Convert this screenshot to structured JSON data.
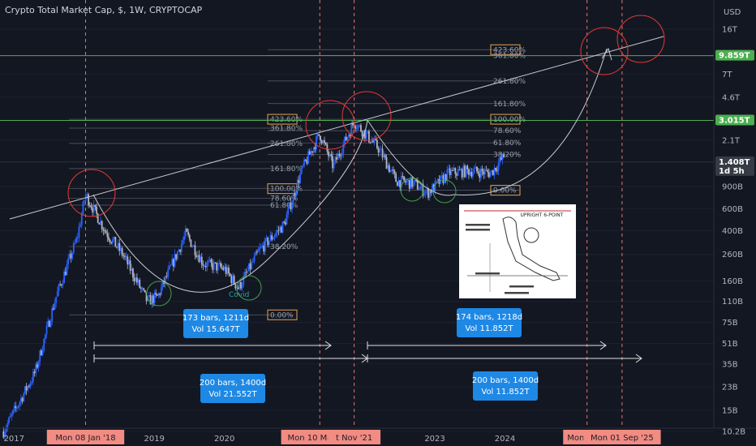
{
  "title": "Crypto Total Market Cap, $, 1W, CRYPTOCAP",
  "currency": "USD",
  "chart_data": {
    "type": "candlestick",
    "title": "Crypto Total Market Cap, $, 1W, CRYPTOCAP",
    "y_scale": "log",
    "ylim": [
      9.5,
      22
    ],
    "y_ticks": [
      {
        "v": 16,
        "label": "16T"
      },
      {
        "v": 7,
        "label": "7T"
      },
      {
        "v": 4.6,
        "label": "4.6T"
      },
      {
        "v": 2.1,
        "label": "2.1T"
      },
      {
        "v": 0.9,
        "label": "900B"
      },
      {
        "v": 0.6,
        "label": "600B"
      },
      {
        "v": 0.4,
        "label": "400B"
      },
      {
        "v": 0.26,
        "label": "260B"
      },
      {
        "v": 0.16,
        "label": "160B"
      },
      {
        "v": 0.11,
        "label": "110B"
      },
      {
        "v": 0.075,
        "label": "75B"
      },
      {
        "v": 0.051,
        "label": "51B"
      },
      {
        "v": 0.035,
        "label": "35B"
      },
      {
        "v": 0.023,
        "label": "23B"
      },
      {
        "v": 0.015,
        "label": "15B"
      },
      {
        "v": 0.0102,
        "label": "10.2B"
      }
    ],
    "price_tags": [
      {
        "v": 9.859,
        "label": "9.859T",
        "color": "#4caf50"
      },
      {
        "v": 3.015,
        "label": "3.015T",
        "color": "#4caf50"
      },
      {
        "v": 1.408,
        "label": "1.408T",
        "sub": "1d 5h",
        "color": "#363a45"
      }
    ],
    "x_ticks": [
      {
        "t": 2017.0,
        "label": "2017"
      },
      {
        "t": 2019.0,
        "label": "2019"
      },
      {
        "t": 2020.0,
        "label": "2020"
      },
      {
        "t": 2023.0,
        "label": "2023"
      },
      {
        "t": 2024.0,
        "label": "2024"
      }
    ],
    "x_partial_labels": [
      {
        "t": 2021.0,
        "label": "2"
      },
      {
        "t": 2026.0,
        "label": "6"
      }
    ],
    "x_highlights": [
      {
        "t": 2018.02,
        "label": "Mon 08 Jan '18"
      },
      {
        "t": 2021.36,
        "label": "Mon 10 May '21"
      },
      {
        "t": 2021.85,
        "label": "t Nov '21"
      },
      {
        "t": 2025.17,
        "label": "Mon 03 M"
      },
      {
        "t": 2025.67,
        "label": "Mon 01 Sep '25"
      }
    ],
    "fib_sets": [
      {
        "levels": [
          {
            "label": "423.60%",
            "v": 3.08,
            "boxed": true
          },
          {
            "label": "361.80%",
            "v": 2.62
          },
          {
            "label": "261.80%",
            "v": 1.98
          },
          {
            "label": "161.80%",
            "v": 1.25
          },
          {
            "label": "100.00%",
            "v": 0.865,
            "boxed": true
          },
          {
            "label": "78.60%",
            "v": 0.725
          },
          {
            "label": "61.80%",
            "v": 0.64
          },
          {
            "label": "38.20%",
            "v": 0.3
          },
          {
            "label": "0.00%",
            "v": 0.086,
            "boxed": true
          }
        ]
      },
      {
        "levels": [
          {
            "label": "423.60%",
            "v": 11.0,
            "boxed": true
          },
          {
            "label": "361.80%",
            "v": 9.9
          },
          {
            "label": "261.80%",
            "v": 6.2
          },
          {
            "label": "161.80%",
            "v": 4.1
          },
          {
            "label": "100.00%",
            "v": 3.08,
            "boxed": true
          },
          {
            "label": "78.60%",
            "v": 2.5
          },
          {
            "label": "61.80%",
            "v": 2.0
          },
          {
            "label": "38.20%",
            "v": 1.62
          },
          {
            "label": "0.00%",
            "v": 0.84,
            "boxed": true
          }
        ]
      }
    ],
    "annotations": [
      {
        "text": "Covid",
        "t": 2020.2,
        "v": 0.12
      }
    ],
    "range_boxes": [
      {
        "line1": "173 bars, 1211d",
        "line2": "Vol 15.647T"
      },
      {
        "line1": "174 bars, 1218d",
        "line2": "Vol 11.852T"
      },
      {
        "line1": "200 bars, 1400d",
        "line2": "Vol 21.552T"
      },
      {
        "line1": "200 bars, 1400d",
        "line2": "Vol 11.852T"
      }
    ],
    "inset_image": {
      "caption": "UPRIGHT 6-POINT"
    }
  }
}
